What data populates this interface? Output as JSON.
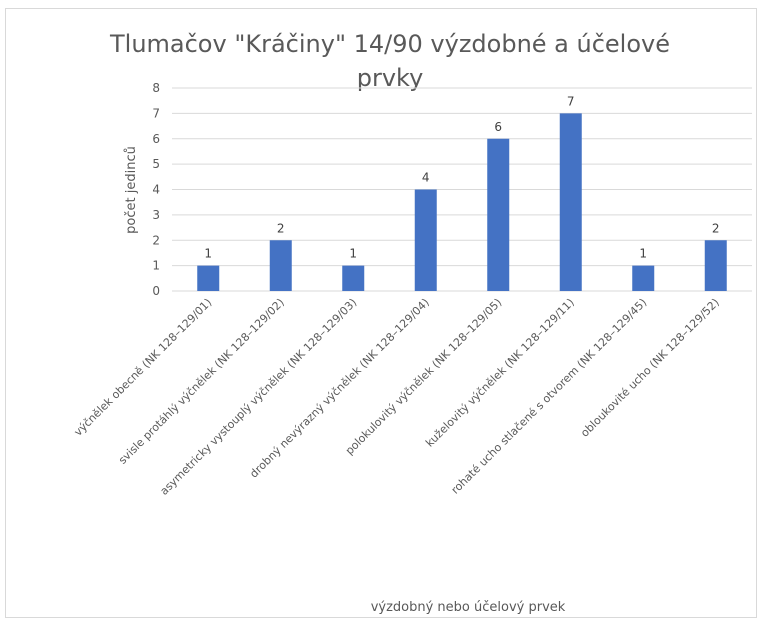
{
  "chart_data": {
    "type": "bar",
    "title_line1": "Tlumačov \"Kráčiny\" 14/90 výzdobné a účelové",
    "title_line2": "prvky",
    "xlabel": "výzdobný nebo účelový prvek",
    "ylabel": "počet jedinců",
    "ylim": [
      0,
      8
    ],
    "yticks": [
      "0",
      "1",
      "2",
      "3",
      "4",
      "5",
      "6",
      "7",
      "8"
    ],
    "grid": true,
    "categories": [
      "výčnělek obecně (NK 128–129/01)",
      "svisle protáhlý výčnělek (NK 128–129/02)",
      "asymetricky vystouplý výčnělek (NK 128–129/03)",
      "drobný nevýrazný výčnělek (NK 128–129/04)",
      "polokulovitý výčnělek (NK 128–129/05)",
      "kuželovitý výčnělek (NK 128–129/11)",
      "rohaté ucho stlačené s otvorem (NK 128–129/45)",
      "obloukovité ucho (NK 128–129/52)"
    ],
    "values": [
      1,
      2,
      1,
      4,
      6,
      7,
      1,
      2
    ],
    "data_labels": [
      "1",
      "2",
      "1",
      "4",
      "6",
      "7",
      "1",
      "2"
    ],
    "bar_color": "#4472c4"
  }
}
